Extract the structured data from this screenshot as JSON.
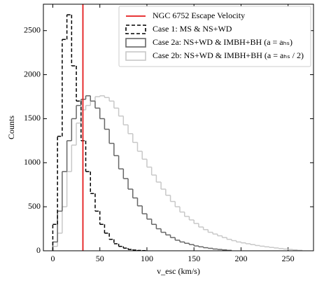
{
  "chart_data": {
    "type": "histogram",
    "xlabel": "v_esc (km/s)",
    "ylabel": "Counts",
    "xlim": [
      -10,
      277
    ],
    "ylim": [
      0,
      2800
    ],
    "xticks": [
      0,
      50,
      100,
      150,
      200,
      250
    ],
    "yticks": [
      0,
      500,
      1000,
      1500,
      2000,
      2500
    ],
    "legend": "upper right",
    "vline": {
      "name": "NGC 6752 Escape Velocity",
      "x": 32,
      "color": "#e41a1c"
    },
    "series": [
      {
        "name": "Case 1: MS & NS+WD",
        "color": "#000000",
        "linestyle": "dashed",
        "bins": [
          0,
          5,
          10,
          15,
          20,
          25,
          30,
          35,
          40,
          45,
          50,
          55,
          60,
          65,
          70,
          75,
          80,
          85,
          90,
          95,
          100
        ],
        "values": [
          300,
          1300,
          2400,
          2680,
          2100,
          1700,
          1250,
          900,
          650,
          450,
          300,
          200,
          130,
          80,
          50,
          30,
          15,
          8,
          4,
          2
        ]
      },
      {
        "name": "Case 2a: NS+WD & IMBH+BH (a = aₕₛ)",
        "color": "#666666",
        "linestyle": "solid",
        "bins": [
          0,
          5,
          10,
          15,
          20,
          25,
          30,
          35,
          40,
          45,
          50,
          55,
          60,
          65,
          70,
          75,
          80,
          85,
          90,
          95,
          100,
          105,
          110,
          115,
          120,
          125,
          130,
          135,
          140,
          145,
          150,
          155,
          160,
          165,
          170,
          175,
          180,
          185,
          190
        ],
        "values": [
          100,
          450,
          900,
          1250,
          1500,
          1650,
          1720,
          1760,
          1700,
          1620,
          1500,
          1380,
          1220,
          1080,
          930,
          820,
          700,
          600,
          510,
          420,
          360,
          300,
          250,
          210,
          180,
          150,
          120,
          100,
          85,
          70,
          55,
          45,
          35,
          28,
          20,
          15,
          10,
          5
        ]
      },
      {
        "name": "Case 2b: NS+WD & IMBH+BH (a = aₕₛ / 2)",
        "color": "#c8c8c8",
        "linestyle": "solid",
        "bins": [
          0,
          5,
          10,
          15,
          20,
          25,
          30,
          35,
          40,
          45,
          50,
          55,
          60,
          65,
          70,
          75,
          80,
          85,
          90,
          95,
          100,
          105,
          110,
          115,
          120,
          125,
          130,
          135,
          140,
          145,
          150,
          155,
          160,
          165,
          170,
          175,
          180,
          185,
          190,
          195,
          200,
          205,
          210,
          215,
          220,
          225,
          230,
          235,
          240,
          245,
          250,
          255,
          260,
          265
        ],
        "values": [
          50,
          200,
          500,
          900,
          1200,
          1450,
          1600,
          1650,
          1700,
          1750,
          1760,
          1740,
          1700,
          1620,
          1530,
          1430,
          1330,
          1230,
          1130,
          1040,
          950,
          860,
          780,
          700,
          630,
          560,
          500,
          440,
          390,
          350,
          310,
          270,
          240,
          210,
          190,
          170,
          150,
          130,
          115,
          100,
          90,
          80,
          70,
          60,
          52,
          45,
          38,
          32,
          26,
          20,
          15,
          10,
          5
        ]
      }
    ]
  }
}
